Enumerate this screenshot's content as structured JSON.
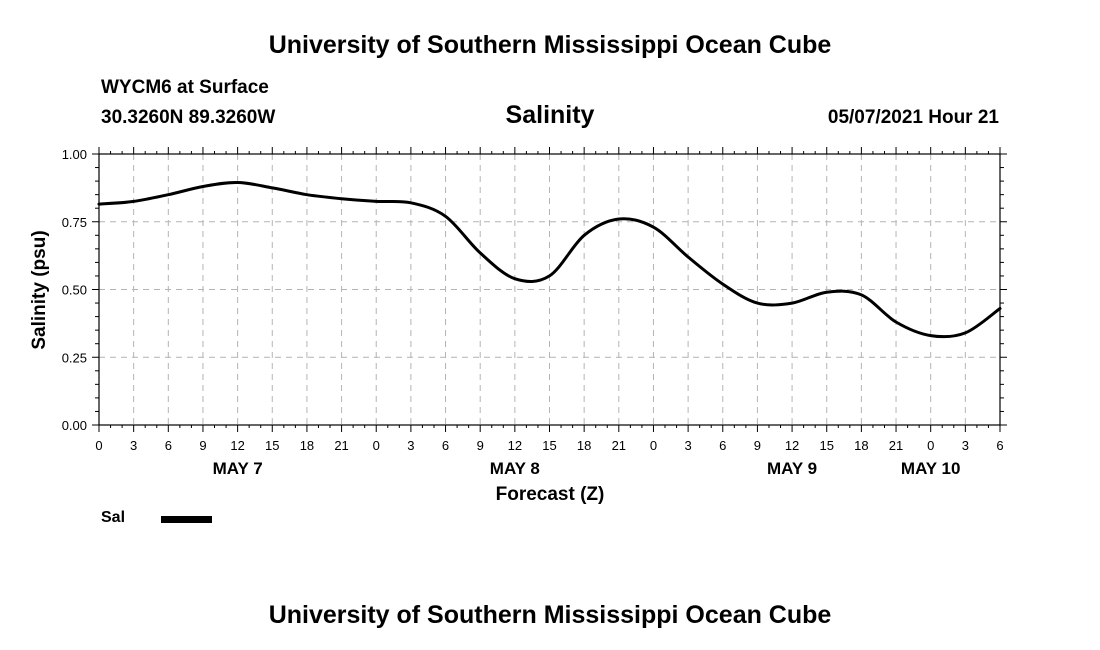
{
  "header": {
    "title": "University of Southern Mississippi Ocean Cube",
    "footer": "University of Southern Mississippi Ocean Cube"
  },
  "station": {
    "name": "WYCM6 at Surface",
    "coords": "30.3260N  89.3260W",
    "datetime": "05/07/2021 Hour 21"
  },
  "legend": {
    "label": "Sal",
    "line_color": "#000000"
  },
  "chart_data": {
    "type": "line",
    "title": "Salinity",
    "xlabel": "Forecast (Z)",
    "ylabel": "Salinity (psu)",
    "x_unit": "forecast hours from May 7 00Z",
    "xlim": [
      0,
      78
    ],
    "ylim": [
      0,
      1
    ],
    "grid": true,
    "y_ticks": [
      {
        "value": 0.0,
        "label": "0.00"
      },
      {
        "value": 0.25,
        "label": "0.25"
      },
      {
        "value": 0.5,
        "label": "0.50"
      },
      {
        "value": 0.75,
        "label": "0.75"
      },
      {
        "value": 1.0,
        "label": "1.00"
      }
    ],
    "x_ticks": [
      {
        "value": 0,
        "label": "0"
      },
      {
        "value": 3,
        "label": "3"
      },
      {
        "value": 6,
        "label": "6"
      },
      {
        "value": 9,
        "label": "9"
      },
      {
        "value": 12,
        "label": "12"
      },
      {
        "value": 15,
        "label": "15"
      },
      {
        "value": 18,
        "label": "18"
      },
      {
        "value": 21,
        "label": "21"
      },
      {
        "value": 24,
        "label": "0"
      },
      {
        "value": 27,
        "label": "3"
      },
      {
        "value": 30,
        "label": "6"
      },
      {
        "value": 33,
        "label": "9"
      },
      {
        "value": 36,
        "label": "12"
      },
      {
        "value": 39,
        "label": "15"
      },
      {
        "value": 42,
        "label": "18"
      },
      {
        "value": 45,
        "label": "21"
      },
      {
        "value": 48,
        "label": "0"
      },
      {
        "value": 51,
        "label": "3"
      },
      {
        "value": 54,
        "label": "6"
      },
      {
        "value": 57,
        "label": "9"
      },
      {
        "value": 60,
        "label": "12"
      },
      {
        "value": 63,
        "label": "15"
      },
      {
        "value": 66,
        "label": "18"
      },
      {
        "value": 69,
        "label": "21"
      },
      {
        "value": 72,
        "label": "0"
      },
      {
        "value": 75,
        "label": "3"
      },
      {
        "value": 78,
        "label": "6"
      }
    ],
    "date_labels": [
      {
        "value": 12,
        "label": "MAY 7"
      },
      {
        "value": 36,
        "label": "MAY 8"
      },
      {
        "value": 60,
        "label": "MAY 9"
      },
      {
        "value": 72,
        "label": "MAY 10"
      }
    ],
    "series": [
      {
        "name": "Sal",
        "x": [
          0,
          3,
          6,
          9,
          12,
          15,
          18,
          21,
          24,
          27,
          30,
          33,
          36,
          39,
          42,
          45,
          48,
          51,
          54,
          57,
          60,
          63,
          66,
          69,
          72,
          75,
          78
        ],
        "values": [
          0.815,
          0.825,
          0.85,
          0.88,
          0.895,
          0.875,
          0.85,
          0.835,
          0.825,
          0.82,
          0.77,
          0.635,
          0.54,
          0.55,
          0.7,
          0.76,
          0.73,
          0.62,
          0.52,
          0.45,
          0.45,
          0.49,
          0.48,
          0.38,
          0.33,
          0.34,
          0.43
        ]
      }
    ]
  }
}
